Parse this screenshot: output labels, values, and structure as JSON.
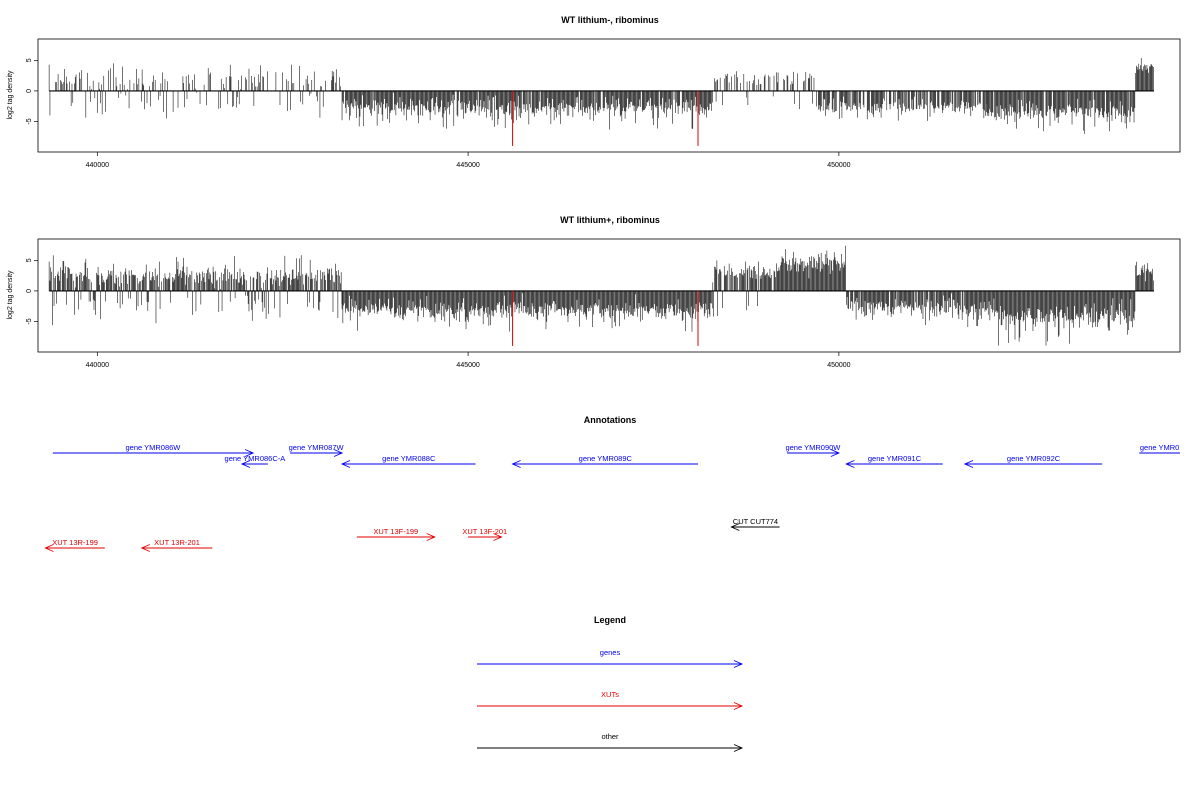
{
  "chart_data": [
    {
      "type": "bar",
      "title": "WT lithium-, ribominus",
      "ylabel": "log2 tag density",
      "xlabel": "",
      "xlim": [
        439200,
        454600
      ],
      "ylim": [
        -9.5,
        8
      ],
      "xticks": [
        440000,
        445000,
        450000
      ],
      "yticks": [
        5,
        0,
        -5
      ],
      "grid": false,
      "baseline": [
        439350,
        454250
      ],
      "seed": 7,
      "segments": [
        {
          "x0": 439350,
          "x1": 443300,
          "sign": 1,
          "density": 0.45,
          "mean": 1.8,
          "spread": 1.6,
          "max": 4.5,
          "neg_frac": 0.25
        },
        {
          "x0": 443300,
          "x1": 448300,
          "sign": -1,
          "density": 0.95,
          "mean": 2.8,
          "spread": 1.4,
          "max": 6.5,
          "neg_frac": 0
        },
        {
          "x0": 448300,
          "x1": 449700,
          "sign": 1,
          "density": 0.45,
          "mean": 2.0,
          "spread": 1.0,
          "max": 3.5,
          "neg_frac": 0.2
        },
        {
          "x0": 449700,
          "x1": 452000,
          "sign": -1,
          "density": 0.8,
          "mean": 2.6,
          "spread": 1.2,
          "max": 5.5,
          "neg_frac": 0
        },
        {
          "x0": 452000,
          "x1": 454000,
          "sign": -1,
          "density": 0.95,
          "mean": 3.5,
          "spread": 1.6,
          "max": 7.2,
          "neg_frac": 0
        },
        {
          "x0": 454000,
          "x1": 454250,
          "sign": 1,
          "density": 1.0,
          "mean": 3.5,
          "spread": 1.2,
          "max": 5.6,
          "neg_frac": 0
        }
      ],
      "highlights": [
        {
          "x": 445600,
          "y": -9,
          "color": "#e00000"
        },
        {
          "x": 448100,
          "y": -9,
          "color": "#e00000"
        }
      ]
    },
    {
      "type": "bar",
      "title": "WT lithium+, ribominus",
      "ylabel": "log2 tag density",
      "xlabel": "",
      "xlim": [
        439200,
        454600
      ],
      "ylim": [
        -9.5,
        8
      ],
      "xticks": [
        440000,
        445000,
        450000
      ],
      "yticks": [
        5,
        0,
        -5
      ],
      "grid": false,
      "baseline": [
        439350,
        454250
      ],
      "seed": 13,
      "segments": [
        {
          "x0": 439350,
          "x1": 443300,
          "sign": 1,
          "density": 0.95,
          "mean": 2.5,
          "spread": 1.4,
          "max": 6.0,
          "neg_frac": 0.2
        },
        {
          "x0": 443300,
          "x1": 448300,
          "sign": -1,
          "density": 1.0,
          "mean": 3.2,
          "spread": 1.4,
          "max": 7.0,
          "neg_frac": 0
        },
        {
          "x0": 448300,
          "x1": 449200,
          "sign": 1,
          "density": 0.9,
          "mean": 3.0,
          "spread": 1.3,
          "max": 5.0,
          "neg_frac": 0.1
        },
        {
          "x0": 449200,
          "x1": 450100,
          "sign": 1,
          "density": 1.0,
          "mean": 4.6,
          "spread": 1.6,
          "max": 7.8,
          "neg_frac": 0
        },
        {
          "x0": 450100,
          "x1": 452100,
          "sign": -1,
          "density": 0.9,
          "mean": 2.8,
          "spread": 1.4,
          "max": 6.0,
          "neg_frac": 0
        },
        {
          "x0": 452100,
          "x1": 454000,
          "sign": -1,
          "density": 1.0,
          "mean": 4.2,
          "spread": 1.7,
          "max": 9.0,
          "neg_frac": 0
        },
        {
          "x0": 454000,
          "x1": 454250,
          "sign": 1,
          "density": 1.0,
          "mean": 3.0,
          "spread": 1.2,
          "max": 5.5,
          "neg_frac": 0
        }
      ],
      "highlights": [
        {
          "x": 445600,
          "y": -9,
          "color": "#e00000"
        },
        {
          "x": 448100,
          "y": -9,
          "color": "#e00000"
        }
      ]
    }
  ],
  "annotations": {
    "title": "Annotations",
    "xlim": [
      439200,
      454600
    ],
    "genes_color": "#0000ee",
    "xuts_color": "#e00000",
    "other_color": "#000000",
    "features": [
      {
        "label": "gene YMR086W",
        "start": 439400,
        "end": 442100,
        "dir": "right",
        "row": 0,
        "kind": "gene"
      },
      {
        "label": "gene YMR086C-A",
        "start": 441950,
        "end": 442300,
        "dir": "left",
        "row": 1,
        "kind": "gene"
      },
      {
        "label": "gene YMR087W",
        "start": 442600,
        "end": 443300,
        "dir": "right",
        "row": 0,
        "kind": "gene"
      },
      {
        "label": "gene YMR088C",
        "start": 443300,
        "end": 445100,
        "dir": "left",
        "row": 1,
        "kind": "gene"
      },
      {
        "label": "gene YMR089C",
        "start": 445600,
        "end": 448100,
        "dir": "left",
        "row": 1,
        "kind": "gene"
      },
      {
        "label": "gene YMR090W",
        "start": 449300,
        "end": 450000,
        "dir": "right",
        "row": 0,
        "kind": "gene"
      },
      {
        "label": "gene YMR091C",
        "start": 450100,
        "end": 451400,
        "dir": "left",
        "row": 1,
        "kind": "gene"
      },
      {
        "label": "gene YMR092C",
        "start": 451700,
        "end": 453550,
        "dir": "left",
        "row": 1,
        "kind": "gene"
      },
      {
        "label": "gene YMR0",
        "start": 454050,
        "end": 454600,
        "dir": "none",
        "row": 0,
        "kind": "gene"
      },
      {
        "label": "CUT CUT774",
        "start": 448550,
        "end": 449200,
        "dir": "left",
        "row": 4,
        "kind": "other"
      },
      {
        "label": "XUT 13R-199",
        "start": 439300,
        "end": 440100,
        "dir": "left",
        "row": 5,
        "kind": "xut"
      },
      {
        "label": "XUT 13R-201",
        "start": 440600,
        "end": 441550,
        "dir": "left",
        "row": 5,
        "kind": "xut"
      },
      {
        "label": "XUT 13F-199",
        "start": 443500,
        "end": 444550,
        "dir": "right",
        "row": 6,
        "kind": "xut"
      },
      {
        "label": "XUT 13F-201",
        "start": 445000,
        "end": 445450,
        "dir": "right",
        "row": 6,
        "kind": "xut"
      }
    ]
  },
  "legend": {
    "title": "Legend",
    "items": [
      {
        "label": "genes",
        "color": "#0000ee"
      },
      {
        "label": "XUTs",
        "color": "#e00000"
      },
      {
        "label": "other",
        "color": "#000000"
      }
    ]
  }
}
